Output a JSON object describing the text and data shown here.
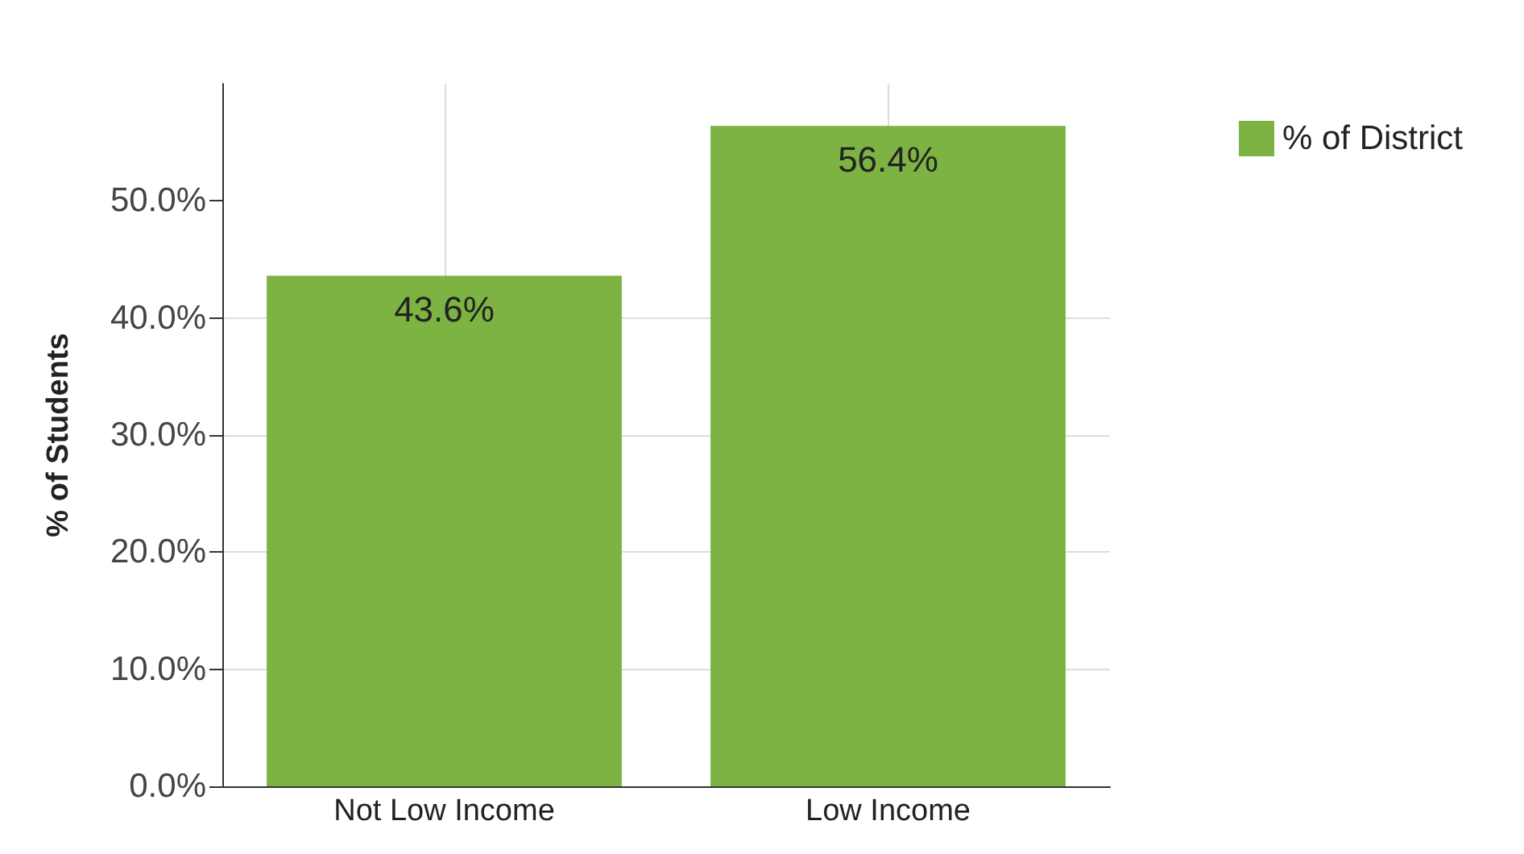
{
  "chart_data": {
    "type": "bar",
    "ylabel": "% of Students",
    "categories": [
      "Not Low Income",
      "Low Income"
    ],
    "series": [
      {
        "name": "% of District",
        "color": "#7cb342",
        "values": [
          43.6,
          56.4
        ],
        "value_labels": [
          "43.6%",
          "56.4%"
        ]
      }
    ],
    "ylim": [
      0,
      60
    ],
    "yticks": [
      {
        "value": 0,
        "label": "0.0%"
      },
      {
        "value": 10,
        "label": "10.0%"
      },
      {
        "value": 20,
        "label": "20.0%"
      },
      {
        "value": 30,
        "label": "30.0%"
      },
      {
        "value": 40,
        "label": "40.0%"
      },
      {
        "value": 50,
        "label": "50.0%"
      }
    ],
    "grid": true,
    "legend": "top right"
  }
}
